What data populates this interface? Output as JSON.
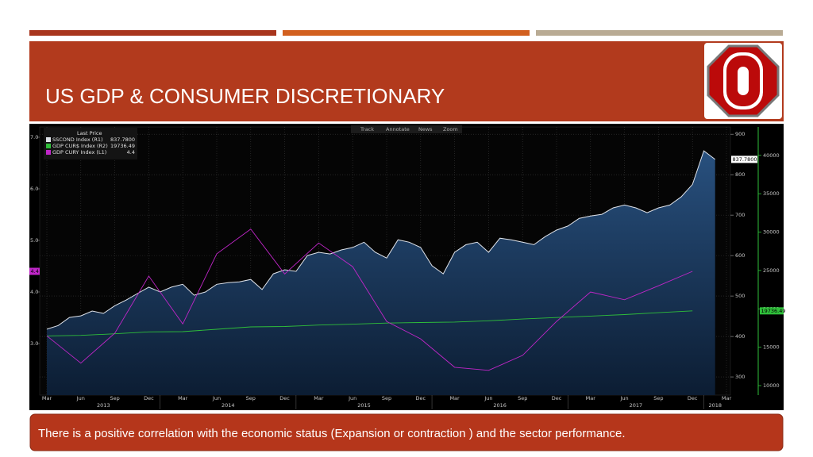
{
  "slide": {
    "title": "US GDP & CONSUMER DISCRETIONARY",
    "caption": "There is a positive correlation with the economic status (Expansion or contraction ) and the sector performance."
  },
  "chart_data": {
    "type": "line",
    "legend_title": "Last Price",
    "toolbar": [
      "Track",
      "Annotate",
      "News",
      "Zoom"
    ],
    "xlim": [
      "2013-03",
      "2018-03"
    ],
    "xticks": [
      {
        "value": "2013-03",
        "label": "Mar"
      },
      {
        "value": "2013-06",
        "label": "Jun"
      },
      {
        "value": "2013-09",
        "label": "Sep"
      },
      {
        "value": "2013-12",
        "label": "Dec"
      },
      {
        "value": "2014-03",
        "label": "Mar"
      },
      {
        "value": "2014-06",
        "label": "Jun"
      },
      {
        "value": "2014-09",
        "label": "Sep"
      },
      {
        "value": "2014-12",
        "label": "Dec"
      },
      {
        "value": "2015-03",
        "label": "Mar"
      },
      {
        "value": "2015-06",
        "label": "Jun"
      },
      {
        "value": "2015-09",
        "label": "Sep"
      },
      {
        "value": "2015-12",
        "label": "Dec"
      },
      {
        "value": "2016-03",
        "label": "Mar"
      },
      {
        "value": "2016-06",
        "label": "Jun"
      },
      {
        "value": "2016-09",
        "label": "Sep"
      },
      {
        "value": "2016-12",
        "label": "Dec"
      },
      {
        "value": "2017-03",
        "label": "Mar"
      },
      {
        "value": "2017-06",
        "label": "Jun"
      },
      {
        "value": "2017-09",
        "label": "Sep"
      },
      {
        "value": "2017-12",
        "label": "Dec"
      },
      {
        "value": "2018-03",
        "label": "Mar"
      }
    ],
    "year_labels": [
      "2013",
      "2014",
      "2015",
      "2016",
      "2017",
      "2018"
    ],
    "ylim": [
      2.0,
      7.2
    ],
    "yticks": [
      {
        "value": 3,
        "label": "3.0"
      },
      {
        "value": 4,
        "label": "4.0"
      },
      {
        "value": 5,
        "label": "5.0"
      },
      {
        "value": 6,
        "label": "6.0"
      },
      {
        "value": 7,
        "label": "7.0"
      }
    ],
    "y2lim": [
      255,
      918
    ],
    "y2ticks": [
      300,
      400,
      500,
      600,
      700,
      800,
      900
    ],
    "y3lim": [
      8760,
      43700
    ],
    "y3ticks": [
      10000,
      15000,
      20000,
      25000,
      30000,
      35000,
      40000
    ],
    "grid": true,
    "series": [
      {
        "name": "SSCOND Index (R1)",
        "color": "#dfe3ea",
        "axis": "y2",
        "area": true,
        "x": [
          "2013-03",
          "2013-04",
          "2013-05",
          "2013-06",
          "2013-07",
          "2013-08",
          "2013-09",
          "2013-10",
          "2013-11",
          "2013-12",
          "2014-01",
          "2014-02",
          "2014-03",
          "2014-04",
          "2014-05",
          "2014-06",
          "2014-07",
          "2014-08",
          "2014-09",
          "2014-10",
          "2014-11",
          "2014-12",
          "2015-01",
          "2015-02",
          "2015-03",
          "2015-04",
          "2015-05",
          "2015-06",
          "2015-07",
          "2015-08",
          "2015-09",
          "2015-10",
          "2015-11",
          "2015-12",
          "2016-01",
          "2016-02",
          "2016-03",
          "2016-04",
          "2016-05",
          "2016-06",
          "2016-07",
          "2016-08",
          "2016-09",
          "2016-10",
          "2016-11",
          "2016-12",
          "2017-01",
          "2017-02",
          "2017-03",
          "2017-04",
          "2017-05",
          "2017-06",
          "2017-07",
          "2017-08",
          "2017-09",
          "2017-10",
          "2017-11",
          "2017-12",
          "2018-01",
          "2018-02"
        ],
        "values": [
          418,
          427,
          447,
          451,
          463,
          457,
          476,
          490,
          506,
          522,
          510,
          522,
          529,
          502,
          510,
          529,
          533,
          535,
          541,
          516,
          555,
          565,
          561,
          600,
          608,
          604,
          614,
          620,
          633,
          608,
          594,
          639,
          633,
          620,
          575,
          555,
          608,
          627,
          633,
          608,
          643,
          639,
          633,
          627,
          647,
          663,
          673,
          692,
          698,
          702,
          718,
          725,
          718,
          706,
          718,
          725,
          745,
          776,
          859,
          837.78
        ],
        "value_labels": [
          null,
          null,
          null,
          null,
          null,
          null,
          null,
          null,
          null,
          null,
          null,
          null,
          null,
          null,
          null,
          null,
          null,
          null,
          null,
          null,
          null,
          null,
          null,
          null,
          null,
          null,
          null,
          null,
          null,
          null,
          null,
          null,
          null,
          null,
          null,
          null,
          null,
          null,
          null,
          null,
          null,
          null,
          null,
          null,
          null,
          null,
          null,
          null,
          null,
          null,
          null,
          null,
          null,
          null,
          null,
          null,
          null,
          null,
          null,
          "837.7800"
        ]
      },
      {
        "name": "GDP CUR$ Index (R2)",
        "color": "#2fbf3a",
        "axis": "y3",
        "x": [
          "2013-03",
          "2013-06",
          "2013-09",
          "2013-12",
          "2014-03",
          "2014-06",
          "2014-09",
          "2014-12",
          "2015-03",
          "2015-06",
          "2015-09",
          "2015-12",
          "2016-03",
          "2016-06",
          "2016-09",
          "2016-12",
          "2017-03",
          "2017-06",
          "2017-09",
          "2017-12"
        ],
        "values": [
          16475,
          16541,
          16749,
          16999,
          17025,
          17344,
          17647,
          17703,
          17885,
          18004,
          18142,
          18222,
          18282,
          18450,
          18675,
          18869,
          19058,
          19250,
          19500,
          19736.49
        ]
      },
      {
        "name": "GDP CURY Index (L1)",
        "color": "#c026c8",
        "axis": "y",
        "x": [
          "2013-03",
          "2013-06",
          "2013-09",
          "2013-12",
          "2014-03",
          "2014-06",
          "2014-09",
          "2014-12",
          "2015-03",
          "2015-06",
          "2015-09",
          "2015-12",
          "2016-03",
          "2016-06",
          "2016-09",
          "2016-12",
          "2017-03",
          "2017-06",
          "2017-09",
          "2017-12"
        ],
        "values": [
          3.15,
          2.62,
          3.2,
          4.31,
          3.38,
          4.74,
          5.22,
          4.35,
          4.95,
          4.49,
          3.43,
          3.09,
          2.54,
          2.48,
          2.77,
          3.43,
          4.0,
          3.85,
          4.12,
          4.4
        ]
      }
    ]
  }
}
